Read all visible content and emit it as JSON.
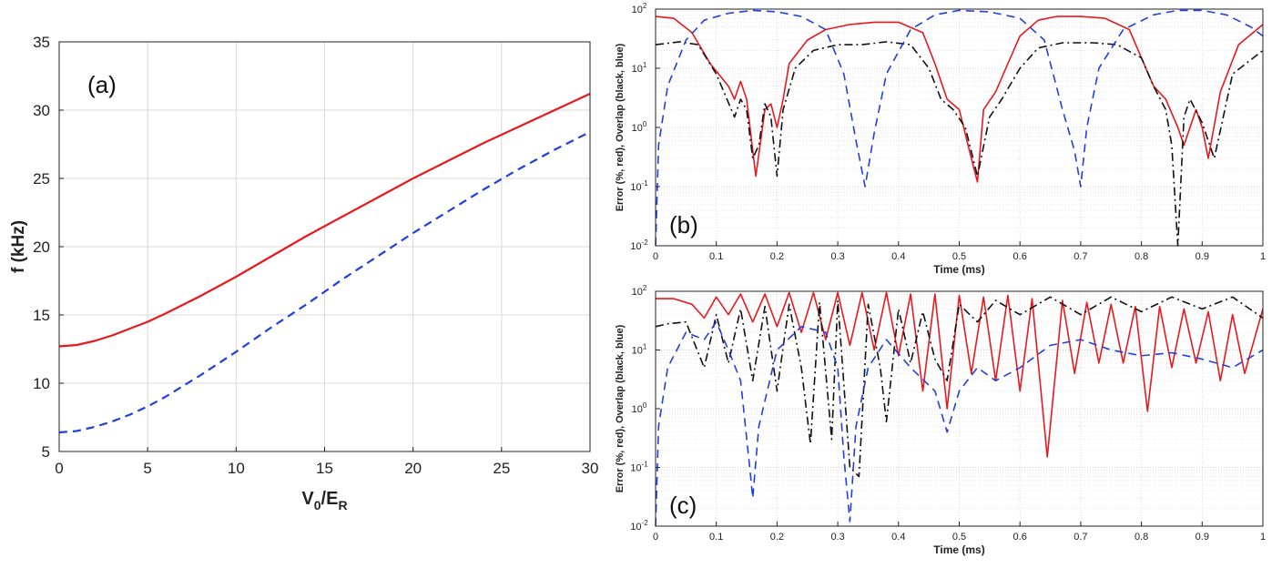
{
  "chart_data": [
    {
      "id": "a",
      "type": "line",
      "panel_label": "(a)",
      "xlabel": "V0/ER",
      "xlabel_main": "V",
      "xlabel_sub1": "0",
      "xlabel_mid": "/E",
      "xlabel_sub2": "R",
      "ylabel": "f (kHz)",
      "xlim": [
        0,
        30
      ],
      "ylim": [
        5,
        35
      ],
      "xticks": [
        0,
        5,
        10,
        15,
        20,
        25,
        30
      ],
      "yticks": [
        5,
        10,
        15,
        20,
        25,
        30,
        35
      ],
      "grid": true,
      "series": [
        {
          "name": "red-solid",
          "color": "#e8191e",
          "style": "solid",
          "x": [
            0,
            1,
            2,
            3,
            4,
            5,
            6,
            8,
            10,
            12,
            14,
            16,
            18,
            20,
            22,
            24,
            26,
            28,
            30
          ],
          "y": [
            12.7,
            12.8,
            13.1,
            13.5,
            14.0,
            14.5,
            15.1,
            16.4,
            17.8,
            19.3,
            20.8,
            22.2,
            23.6,
            25.0,
            26.3,
            27.6,
            28.8,
            30.0,
            31.2
          ]
        },
        {
          "name": "blue-dashed",
          "color": "#1f3fe0",
          "style": "dashed",
          "x": [
            0,
            1,
            2,
            3,
            4,
            5,
            6,
            8,
            10,
            12,
            14,
            16,
            18,
            20,
            22,
            24,
            26,
            28,
            30
          ],
          "y": [
            6.4,
            6.5,
            6.8,
            7.2,
            7.7,
            8.3,
            9.0,
            10.6,
            12.3,
            14.1,
            15.8,
            17.6,
            19.3,
            21.0,
            22.6,
            24.2,
            25.7,
            27.1,
            28.4
          ]
        }
      ]
    },
    {
      "id": "b",
      "type": "line",
      "panel_label": "(b)",
      "xlabel": "Time (ms)",
      "ylabel": "Error (%, red), Overlap (black, blue)",
      "xlim": [
        0,
        1
      ],
      "ylim": [
        0.01,
        100
      ],
      "yscale": "log",
      "xticks": [
        "0",
        "0.1",
        "0.2",
        "0.3",
        "0.4",
        "0.5",
        "0.6",
        "0.7",
        "0.8",
        "0.9",
        "1"
      ],
      "yticks": [
        {
          "base": "10",
          "exp": "-2"
        },
        {
          "base": "10",
          "exp": "-1"
        },
        {
          "base": "10",
          "exp": "0"
        },
        {
          "base": "10",
          "exp": "1"
        },
        {
          "base": "10",
          "exp": "2"
        }
      ],
      "series": [
        {
          "name": "red-solid",
          "color": "#e8191e",
          "style": "solid",
          "x": [
            0,
            0.03,
            0.06,
            0.09,
            0.12,
            0.13,
            0.14,
            0.15,
            0.165,
            0.18,
            0.19,
            0.2,
            0.21,
            0.22,
            0.25,
            0.28,
            0.32,
            0.36,
            0.4,
            0.44,
            0.46,
            0.48,
            0.5,
            0.52,
            0.53,
            0.54,
            0.56,
            0.58,
            0.6,
            0.63,
            0.66,
            0.7,
            0.74,
            0.78,
            0.8,
            0.82,
            0.84,
            0.86,
            0.87,
            0.89,
            0.9,
            0.91,
            0.93,
            0.96,
            1.0
          ],
          "y": [
            75,
            70,
            40,
            12,
            5,
            3,
            6,
            3,
            0.15,
            2,
            2.5,
            1,
            3,
            12,
            30,
            45,
            55,
            60,
            60,
            40,
            12,
            3,
            2,
            0.3,
            0.12,
            2,
            4,
            12,
            35,
            65,
            75,
            75,
            70,
            45,
            15,
            5,
            3,
            1,
            0.5,
            2,
            1,
            0.3,
            4,
            25,
            55
          ]
        },
        {
          "name": "black-dashdot",
          "color": "#111111",
          "style": "dashdot",
          "x": [
            0,
            0.04,
            0.07,
            0.1,
            0.13,
            0.14,
            0.15,
            0.16,
            0.17,
            0.18,
            0.19,
            0.2,
            0.21,
            0.23,
            0.26,
            0.3,
            0.34,
            0.38,
            0.42,
            0.45,
            0.47,
            0.49,
            0.51,
            0.53,
            0.55,
            0.57,
            0.6,
            0.63,
            0.67,
            0.72,
            0.76,
            0.8,
            0.82,
            0.84,
            0.85,
            0.86,
            0.87,
            0.88,
            0.9,
            0.92,
            0.95,
            1.0
          ],
          "y": [
            25,
            28,
            25,
            8,
            1.5,
            3,
            2,
            0.3,
            0.5,
            2.5,
            1.5,
            0.15,
            2,
            10,
            20,
            25,
            25,
            28,
            25,
            10,
            3,
            2,
            1,
            0.15,
            1.5,
            3,
            10,
            22,
            27,
            27,
            25,
            15,
            5,
            2,
            0.5,
            0.01,
            1.5,
            3,
            1.2,
            0.3,
            8,
            20
          ]
        },
        {
          "name": "blue-dashed",
          "color": "#1f3fe0",
          "style": "dashed",
          "x": [
            0,
            0.005,
            0.02,
            0.05,
            0.08,
            0.12,
            0.16,
            0.2,
            0.24,
            0.28,
            0.31,
            0.33,
            0.345,
            0.36,
            0.38,
            0.42,
            0.46,
            0.5,
            0.55,
            0.6,
            0.64,
            0.67,
            0.69,
            0.7,
            0.71,
            0.73,
            0.77,
            0.82,
            0.86,
            0.9,
            0.94,
            0.98,
            1.0
          ],
          "y": [
            0.01,
            0.5,
            5,
            30,
            65,
            85,
            95,
            90,
            75,
            45,
            8,
            0.6,
            0.1,
            0.8,
            8,
            45,
            80,
            95,
            90,
            70,
            30,
            2,
            0.4,
            0.1,
            1,
            10,
            45,
            80,
            95,
            95,
            80,
            50,
            35
          ]
        }
      ]
    },
    {
      "id": "c",
      "type": "line",
      "panel_label": "(c)",
      "xlabel": "Time (ms)",
      "ylabel": "Error (%, red), Overlap (black, blue)",
      "xlim": [
        0,
        1
      ],
      "ylim": [
        0.01,
        100
      ],
      "yscale": "log",
      "xticks": [
        "0",
        "0.1",
        "0.2",
        "0.3",
        "0.4",
        "0.5",
        "0.6",
        "0.7",
        "0.8",
        "0.9",
        "1"
      ],
      "yticks": [
        {
          "base": "10",
          "exp": "-2"
        },
        {
          "base": "10",
          "exp": "-1"
        },
        {
          "base": "10",
          "exp": "0"
        },
        {
          "base": "10",
          "exp": "1"
        },
        {
          "base": "10",
          "exp": "2"
        }
      ],
      "series": [
        {
          "name": "red-solid",
          "color": "#e8191e",
          "style": "solid",
          "x": [
            0,
            0.03,
            0.06,
            0.08,
            0.1,
            0.12,
            0.14,
            0.16,
            0.18,
            0.2,
            0.22,
            0.24,
            0.26,
            0.28,
            0.3,
            0.32,
            0.34,
            0.36,
            0.38,
            0.4,
            0.42,
            0.44,
            0.46,
            0.48,
            0.5,
            0.52,
            0.54,
            0.56,
            0.58,
            0.6,
            0.62,
            0.645,
            0.67,
            0.69,
            0.71,
            0.73,
            0.75,
            0.77,
            0.79,
            0.81,
            0.83,
            0.85,
            0.87,
            0.89,
            0.91,
            0.93,
            0.95,
            0.97,
            1.0
          ],
          "y": [
            75,
            75,
            60,
            35,
            80,
            40,
            90,
            30,
            90,
            25,
            95,
            20,
            95,
            15,
            95,
            12,
            95,
            10,
            95,
            8,
            90,
            2,
            90,
            1,
            85,
            4,
            80,
            3,
            85,
            2,
            75,
            0.15,
            70,
            4,
            65,
            6,
            60,
            6,
            55,
            0.9,
            55,
            5,
            50,
            6,
            45,
            3,
            40,
            4,
            50
          ]
        },
        {
          "name": "black-dashdot",
          "color": "#111111",
          "style": "dashdot",
          "x": [
            0,
            0.02,
            0.05,
            0.08,
            0.1,
            0.12,
            0.14,
            0.16,
            0.18,
            0.2,
            0.22,
            0.24,
            0.255,
            0.27,
            0.29,
            0.3,
            0.32,
            0.335,
            0.35,
            0.37,
            0.38,
            0.4,
            0.42,
            0.44,
            0.46,
            0.48,
            0.5,
            0.53,
            0.56,
            0.6,
            0.65,
            0.7,
            0.75,
            0.8,
            0.85,
            0.9,
            0.95,
            1.0
          ],
          "y": [
            25,
            28,
            30,
            5,
            40,
            6,
            50,
            3,
            55,
            2,
            60,
            5,
            0.25,
            65,
            0.3,
            70,
            0.1,
            0.07,
            60,
            5,
            0.6,
            50,
            6,
            45,
            7,
            3,
            60,
            30,
            70,
            40,
            80,
            40,
            80,
            45,
            80,
            50,
            80,
            35
          ]
        },
        {
          "name": "blue-dashed",
          "color": "#1f3fe0",
          "style": "dashed",
          "x": [
            0,
            0.005,
            0.02,
            0.05,
            0.08,
            0.1,
            0.12,
            0.14,
            0.155,
            0.16,
            0.17,
            0.2,
            0.24,
            0.28,
            0.3,
            0.31,
            0.32,
            0.33,
            0.35,
            0.38,
            0.42,
            0.46,
            0.48,
            0.5,
            0.53,
            0.56,
            0.6,
            0.65,
            0.7,
            0.75,
            0.8,
            0.85,
            0.9,
            0.95,
            1.0
          ],
          "y": [
            0.01,
            0.5,
            5,
            20,
            15,
            30,
            10,
            3,
            0.1,
            0.03,
            0.5,
            10,
            25,
            20,
            5,
            0.15,
            0.012,
            0.5,
            5,
            15,
            5,
            2,
            0.4,
            2,
            5,
            3,
            5,
            12,
            15,
            10,
            8,
            9,
            7,
            5,
            10
          ]
        }
      ]
    }
  ]
}
